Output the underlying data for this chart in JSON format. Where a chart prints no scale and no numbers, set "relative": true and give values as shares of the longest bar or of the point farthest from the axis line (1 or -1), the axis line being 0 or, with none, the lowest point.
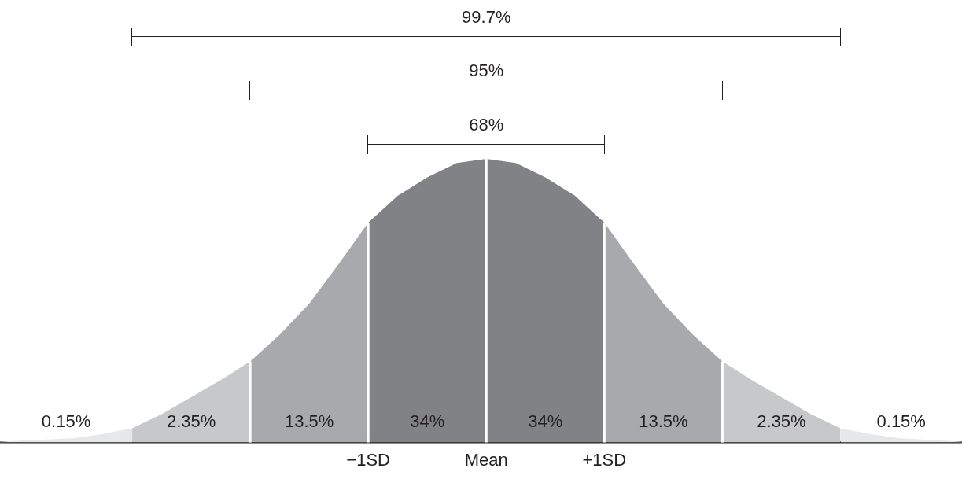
{
  "chart_data": {
    "type": "area",
    "relative": true,
    "grid": false,
    "xlim": [
      -4.12,
      4.03
    ],
    "xticks": [
      {
        "value": -1,
        "label": "−1SD"
      },
      {
        "value": 0,
        "label": "Mean"
      },
      {
        "value": 1,
        "label": "+1SD"
      }
    ],
    "series": [
      {
        "color": "#e6e7e8",
        "x": [
          -4.12,
          -3.5,
          -3.25,
          -3
        ],
        "values": [
          0.003,
          0.015,
          0.03,
          0.05
        ]
      },
      {
        "color": "#c7c8ca",
        "x": [
          -3,
          -2.75,
          -2.5,
          -2.25,
          -2
        ],
        "values": [
          0.05,
          0.1,
          0.16,
          0.22,
          0.286
        ]
      },
      {
        "color": "#a7a9ac",
        "x": [
          -2,
          -1.75,
          -1.5,
          -1.25,
          -1
        ],
        "values": [
          0.286,
          0.38,
          0.49,
          0.63,
          0.775
        ]
      },
      {
        "color": "#808285",
        "x": [
          -1,
          -0.75,
          -0.5,
          -0.25,
          0
        ],
        "values": [
          0.775,
          0.87,
          0.935,
          0.985,
          1
        ]
      },
      {
        "color": "#808285",
        "x": [
          0,
          0.25,
          0.5,
          0.75,
          1
        ],
        "values": [
          1,
          0.985,
          0.935,
          0.87,
          0.775
        ]
      },
      {
        "color": "#a7a9ac",
        "x": [
          1,
          1.25,
          1.5,
          1.75,
          2
        ],
        "values": [
          0.775,
          0.63,
          0.49,
          0.38,
          0.286
        ]
      },
      {
        "color": "#c7c8ca",
        "x": [
          2,
          2.25,
          2.5,
          2.75,
          3
        ],
        "values": [
          0.286,
          0.22,
          0.16,
          0.1,
          0.05
        ]
      },
      {
        "color": "#e6e7e8",
        "x": [
          3,
          3.25,
          3.5,
          4.03
        ],
        "values": [
          0.05,
          0.03,
          0.015,
          0.003
        ]
      }
    ],
    "annotations": [
      "0.15%",
      "2.35%",
      "13.5%",
      "34%",
      "34%",
      "13.5%",
      "2.35%",
      "0.15%",
      "68%",
      "95%",
      "99.7%"
    ],
    "ref_lines": [
      {
        "axis": "x",
        "value": -2,
        "color": "#ffffff"
      },
      {
        "axis": "x",
        "value": -1,
        "color": "#ffffff"
      },
      {
        "axis": "x",
        "value": 0,
        "color": "#ffffff"
      },
      {
        "axis": "x",
        "value": 1,
        "color": "#ffffff"
      },
      {
        "axis": "x",
        "value": 2,
        "color": "#ffffff"
      }
    ]
  }
}
